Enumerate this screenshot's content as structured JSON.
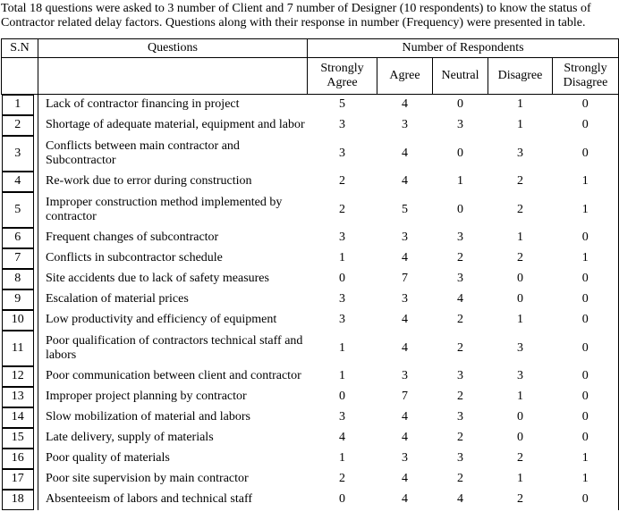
{
  "intro": "Total 18 questions were asked to 3 number of Client and 7 number of Designer (10 respondents) to know the status of\nContractor related delay factors. Questions along with their response in number (Frequency) were presented in table.",
  "table": {
    "header": {
      "sn": "S.N",
      "questions": "Questions",
      "group": "Number of Respondents",
      "sub_columns": [
        "Strongly Agree",
        "Agree",
        "Neutral",
        "Disagree",
        "Strongly Disagree"
      ]
    },
    "rows": [
      {
        "sn": "1",
        "question": "Lack of contractor financing in project",
        "values": [
          5,
          4,
          0,
          1,
          0
        ]
      },
      {
        "sn": "2",
        "question": "Shortage of adequate material, equipment and labor",
        "values": [
          3,
          3,
          3,
          1,
          0
        ]
      },
      {
        "sn": "3",
        "question": "Conflicts between main contractor and\nSubcontractor",
        "values": [
          3,
          4,
          0,
          3,
          0
        ]
      },
      {
        "sn": "4",
        "question": "Re-work due to error during construction",
        "values": [
          2,
          4,
          1,
          2,
          1
        ]
      },
      {
        "sn": "5",
        "question": "Improper construction method implemented by\ncontractor",
        "values": [
          2,
          5,
          0,
          2,
          1
        ]
      },
      {
        "sn": "6",
        "question": "Frequent changes of subcontractor",
        "values": [
          3,
          3,
          3,
          1,
          0
        ]
      },
      {
        "sn": "7",
        "question": "Conflicts in subcontractor schedule",
        "values": [
          1,
          4,
          2,
          2,
          1
        ]
      },
      {
        "sn": "8",
        "question": "Site accidents due to lack of safety measures",
        "values": [
          0,
          7,
          3,
          0,
          0
        ]
      },
      {
        "sn": "9",
        "question": "Escalation of material prices",
        "values": [
          3,
          3,
          4,
          0,
          0
        ]
      },
      {
        "sn": "10",
        "question": "Low productivity and efficiency of equipment",
        "values": [
          3,
          4,
          2,
          1,
          0
        ]
      },
      {
        "sn": "11",
        "question": "Poor qualification of contractors technical staff and\nlabors",
        "values": [
          1,
          4,
          2,
          3,
          0
        ]
      },
      {
        "sn": "12",
        "question": "Poor communication between client and contractor",
        "values": [
          1,
          3,
          3,
          3,
          0
        ]
      },
      {
        "sn": "13",
        "question": "Improper project planning by contractor",
        "values": [
          0,
          7,
          2,
          1,
          0
        ]
      },
      {
        "sn": "14",
        "question": "Slow mobilization of material and labors",
        "values": [
          3,
          4,
          3,
          0,
          0
        ]
      },
      {
        "sn": "15",
        "question": "Late delivery, supply of materials",
        "values": [
          4,
          4,
          2,
          0,
          0
        ]
      },
      {
        "sn": "16",
        "question": "Poor quality of materials",
        "values": [
          1,
          3,
          3,
          2,
          1
        ]
      },
      {
        "sn": "17",
        "question": "Poor site supervision by main contractor",
        "values": [
          2,
          4,
          2,
          1,
          1
        ]
      },
      {
        "sn": "18",
        "question": "Absenteeism of labors and technical staff",
        "values": [
          0,
          4,
          4,
          2,
          0
        ]
      }
    ]
  }
}
